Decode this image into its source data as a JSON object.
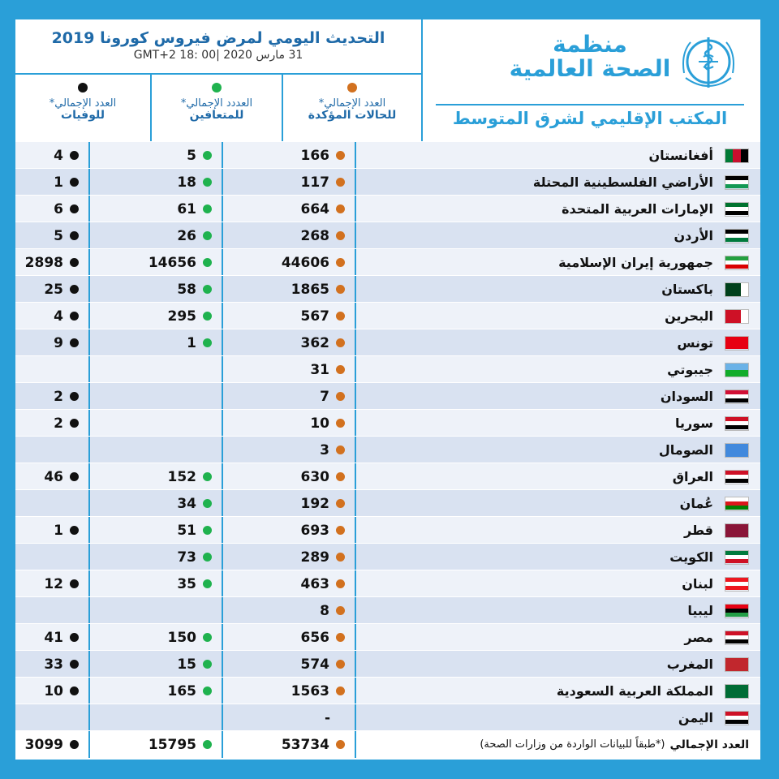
{
  "header": {
    "title": "التحديث اليومي لمرض فيروس كورونا 2019",
    "datetime": "31 مارس 2020  |GMT+2  18: 00",
    "org_name_line1": "منظمة",
    "org_name_line2": "الصحة العالمية",
    "regional_office": "المكتب الإقليمي لشرق المتوسط"
  },
  "columns": {
    "confirmed": {
      "line1": "العدد الإجمالي*",
      "line2": "للحالات المؤكدة",
      "dot_color": "#d2711f"
    },
    "recovered": {
      "line1": "العددد الإجمالي*",
      "line2": "للمتعافين",
      "dot_color": "#1fb24e"
    },
    "deaths": {
      "line1": "العدد الإجمالي*",
      "line2": "للوفيات",
      "dot_color": "#111111"
    }
  },
  "rows": [
    {
      "country": "أفغانستان",
      "confirmed": "166",
      "recovered": "5",
      "deaths": "4",
      "flag": [
        "#000000",
        "#c8102e",
        "#007a36"
      ],
      "flag_dir": "v"
    },
    {
      "country": "الأراضي الفلسطينية المحتلة",
      "confirmed": "117",
      "recovered": "18",
      "deaths": "1",
      "flag": [
        "#000000",
        "#ffffff",
        "#149954"
      ],
      "flag_dir": "h"
    },
    {
      "country": "الإمارات العربية المتحدة",
      "confirmed": "664",
      "recovered": "61",
      "deaths": "6",
      "flag": [
        "#00732f",
        "#ffffff",
        "#000000"
      ],
      "flag_dir": "h"
    },
    {
      "country": "الأردن",
      "confirmed": "268",
      "recovered": "26",
      "deaths": "5",
      "flag": [
        "#000000",
        "#ffffff",
        "#007a3d"
      ],
      "flag_dir": "h"
    },
    {
      "country": "جمهورية إيران الإسلامية",
      "confirmed": "44606",
      "recovered": "14656",
      "deaths": "2898",
      "flag": [
        "#239f40",
        "#ffffff",
        "#da0000"
      ],
      "flag_dir": "h"
    },
    {
      "country": "باكستان",
      "confirmed": "1865",
      "recovered": "58",
      "deaths": "25",
      "flag": [
        "#ffffff",
        "#01411c",
        "#01411c"
      ],
      "flag_dir": "v"
    },
    {
      "country": "البحرين",
      "confirmed": "567",
      "recovered": "295",
      "deaths": "4",
      "flag": [
        "#ffffff",
        "#ce1126",
        "#ce1126"
      ],
      "flag_dir": "v"
    },
    {
      "country": "تونس",
      "confirmed": "362",
      "recovered": "1",
      "deaths": "9",
      "flag": [
        "#e70013",
        "#e70013",
        "#e70013"
      ],
      "flag_dir": "h"
    },
    {
      "country": "جيبوتي",
      "confirmed": "31",
      "recovered": "",
      "deaths": "",
      "flag": [
        "#6ab2e7",
        "#12ad2b"
      ],
      "flag_dir": "h"
    },
    {
      "country": "السودان",
      "confirmed": "7",
      "recovered": "",
      "deaths": "2",
      "flag": [
        "#d21034",
        "#ffffff",
        "#000000"
      ],
      "flag_dir": "h"
    },
    {
      "country": "سوريا",
      "confirmed": "10",
      "recovered": "",
      "deaths": "2",
      "flag": [
        "#ce1126",
        "#ffffff",
        "#000000"
      ],
      "flag_dir": "h"
    },
    {
      "country": "الصومال",
      "confirmed": "3",
      "recovered": "",
      "deaths": "",
      "flag": [
        "#4189dd"
      ],
      "flag_dir": "h"
    },
    {
      "country": "العراق",
      "confirmed": "630",
      "recovered": "152",
      "deaths": "46",
      "flag": [
        "#ce1126",
        "#ffffff",
        "#000000"
      ],
      "flag_dir": "h"
    },
    {
      "country": "عُمان",
      "confirmed": "192",
      "recovered": "34",
      "deaths": "",
      "flag": [
        "#ffffff",
        "#db161b",
        "#008000"
      ],
      "flag_dir": "h"
    },
    {
      "country": "قطر",
      "confirmed": "693",
      "recovered": "51",
      "deaths": "1",
      "flag": [
        "#8a1538"
      ],
      "flag_dir": "h"
    },
    {
      "country": "الكويت",
      "confirmed": "289",
      "recovered": "73",
      "deaths": "",
      "flag": [
        "#007a3d",
        "#ffffff",
        "#ce1126"
      ],
      "flag_dir": "h"
    },
    {
      "country": "لبنان",
      "confirmed": "463",
      "recovered": "35",
      "deaths": "12",
      "flag": [
        "#ee161f",
        "#ffffff",
        "#ee161f"
      ],
      "flag_dir": "h"
    },
    {
      "country": "ليبيا",
      "confirmed": "8",
      "recovered": "",
      "deaths": "",
      "flag": [
        "#e70013",
        "#000000",
        "#239e46"
      ],
      "flag_dir": "h"
    },
    {
      "country": "مصر",
      "confirmed": "656",
      "recovered": "150",
      "deaths": "41",
      "flag": [
        "#ce1126",
        "#ffffff",
        "#000000"
      ],
      "flag_dir": "h"
    },
    {
      "country": "المغرب",
      "confirmed": "574",
      "recovered": "15",
      "deaths": "33",
      "flag": [
        "#c1272d"
      ],
      "flag_dir": "h"
    },
    {
      "country": "المملكة العربية السعودية",
      "confirmed": "1563",
      "recovered": "165",
      "deaths": "10",
      "flag": [
        "#006c35"
      ],
      "flag_dir": "h"
    },
    {
      "country": "اليمن",
      "confirmed": "-",
      "recovered": "",
      "deaths": "",
      "flag": [
        "#ce1126",
        "#ffffff",
        "#000000"
      ],
      "flag_dir": "h"
    }
  ],
  "total": {
    "label": "العدد الإجمالي",
    "note": "(*طبقاً للبيانات الواردة من وزارات الصحة)",
    "confirmed": "53734",
    "recovered": "15795",
    "deaths": "3099"
  }
}
